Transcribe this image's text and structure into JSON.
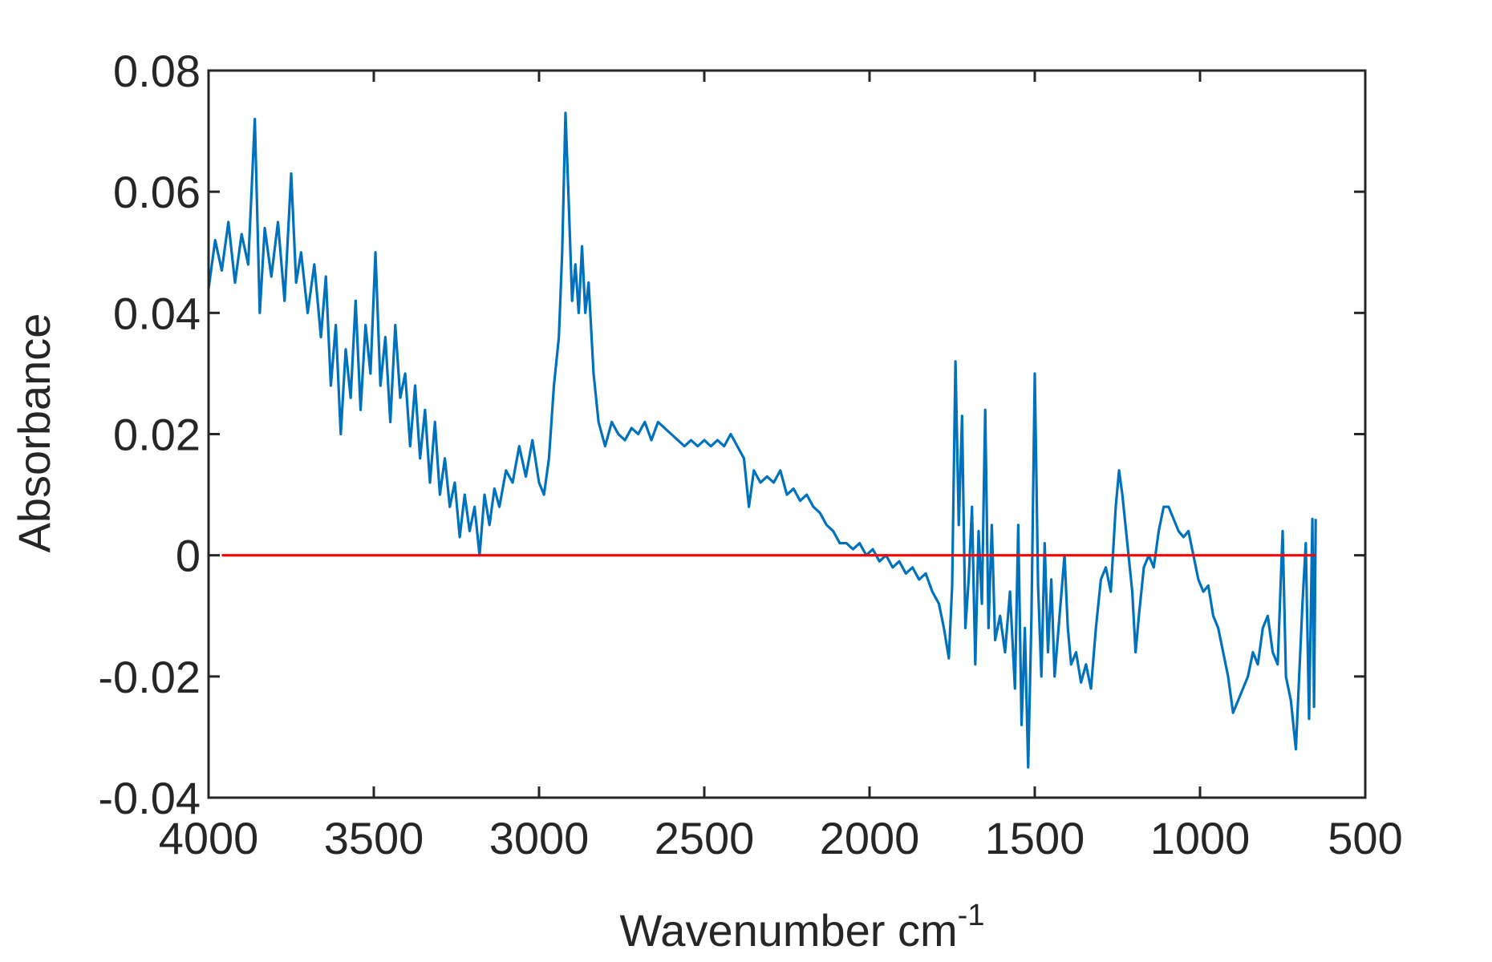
{
  "chart_data": {
    "type": "line",
    "xlabel": "Wavenumber cm",
    "xlabel_sup": "-1",
    "ylabel": "Absorbance",
    "xlim": [
      4000,
      500
    ],
    "xticks": [
      4000,
      3500,
      3000,
      2500,
      2000,
      1500,
      1000,
      500
    ],
    "ylim": [
      -0.04,
      0.08
    ],
    "yticks": [
      -0.04,
      -0.02,
      0,
      0.02,
      0.04,
      0.06,
      0.08
    ],
    "box": true,
    "series": [
      {
        "color": "#0072bd",
        "x": [
          4000,
          3980,
          3960,
          3940,
          3920,
          3900,
          3880,
          3860,
          3845,
          3830,
          3810,
          3790,
          3770,
          3750,
          3735,
          3720,
          3700,
          3680,
          3660,
          3645,
          3630,
          3615,
          3600,
          3585,
          3570,
          3555,
          3540,
          3525,
          3510,
          3495,
          3480,
          3465,
          3450,
          3435,
          3420,
          3405,
          3390,
          3375,
          3360,
          3345,
          3330,
          3315,
          3300,
          3285,
          3270,
          3255,
          3240,
          3225,
          3210,
          3195,
          3180,
          3165,
          3150,
          3135,
          3120,
          3100,
          3080,
          3060,
          3040,
          3020,
          3000,
          2985,
          2970,
          2955,
          2940,
          2930,
          2920,
          2910,
          2900,
          2890,
          2880,
          2870,
          2860,
          2850,
          2835,
          2820,
          2800,
          2780,
          2760,
          2740,
          2720,
          2700,
          2680,
          2660,
          2640,
          2620,
          2600,
          2580,
          2560,
          2540,
          2520,
          2500,
          2480,
          2460,
          2440,
          2420,
          2400,
          2380,
          2365,
          2350,
          2330,
          2310,
          2290,
          2270,
          2250,
          2230,
          2210,
          2190,
          2170,
          2150,
          2130,
          2110,
          2090,
          2070,
          2050,
          2030,
          2010,
          1990,
          1970,
          1950,
          1930,
          1910,
          1890,
          1870,
          1850,
          1830,
          1810,
          1790,
          1775,
          1760,
          1750,
          1740,
          1730,
          1720,
          1710,
          1700,
          1690,
          1680,
          1670,
          1660,
          1650,
          1640,
          1630,
          1620,
          1605,
          1590,
          1575,
          1560,
          1550,
          1540,
          1530,
          1520,
          1510,
          1500,
          1490,
          1480,
          1470,
          1460,
          1450,
          1440,
          1425,
          1410,
          1400,
          1390,
          1375,
          1360,
          1345,
          1330,
          1315,
          1300,
          1285,
          1270,
          1255,
          1245,
          1235,
          1220,
          1205,
          1195,
          1185,
          1170,
          1155,
          1140,
          1125,
          1110,
          1095,
          1080,
          1065,
          1050,
          1035,
          1020,
          1005,
          990,
          975,
          960,
          945,
          930,
          915,
          900,
          885,
          870,
          855,
          840,
          825,
          810,
          795,
          780,
          765,
          750,
          740,
          725,
          710,
          700,
          690,
          680,
          670,
          660,
          655,
          650
        ],
        "values": [
          0.044,
          0.052,
          0.047,
          0.055,
          0.045,
          0.053,
          0.048,
          0.072,
          0.04,
          0.054,
          0.046,
          0.055,
          0.042,
          0.063,
          0.045,
          0.05,
          0.04,
          0.048,
          0.036,
          0.046,
          0.028,
          0.038,
          0.02,
          0.034,
          0.026,
          0.042,
          0.024,
          0.038,
          0.03,
          0.05,
          0.028,
          0.036,
          0.022,
          0.038,
          0.026,
          0.03,
          0.018,
          0.028,
          0.016,
          0.024,
          0.012,
          0.022,
          0.01,
          0.016,
          0.008,
          0.012,
          0.003,
          0.01,
          0.004,
          0.008,
          0.0,
          0.01,
          0.005,
          0.011,
          0.008,
          0.014,
          0.012,
          0.018,
          0.013,
          0.019,
          0.012,
          0.01,
          0.016,
          0.028,
          0.036,
          0.05,
          0.073,
          0.058,
          0.042,
          0.048,
          0.04,
          0.051,
          0.04,
          0.045,
          0.03,
          0.022,
          0.018,
          0.022,
          0.02,
          0.019,
          0.021,
          0.02,
          0.022,
          0.019,
          0.022,
          0.021,
          0.02,
          0.019,
          0.018,
          0.019,
          0.018,
          0.019,
          0.018,
          0.019,
          0.018,
          0.02,
          0.018,
          0.016,
          0.008,
          0.014,
          0.012,
          0.013,
          0.012,
          0.014,
          0.01,
          0.011,
          0.009,
          0.01,
          0.008,
          0.007,
          0.005,
          0.004,
          0.002,
          0.002,
          0.001,
          0.002,
          0.0,
          0.001,
          -0.001,
          0.0,
          -0.002,
          -0.001,
          -0.003,
          -0.002,
          -0.004,
          -0.003,
          -0.006,
          -0.008,
          -0.012,
          -0.017,
          -0.005,
          0.032,
          0.005,
          0.023,
          -0.012,
          -0.004,
          0.008,
          -0.018,
          0.004,
          -0.008,
          0.024,
          -0.012,
          0.005,
          -0.014,
          -0.01,
          -0.016,
          -0.006,
          -0.022,
          0.005,
          -0.028,
          -0.012,
          -0.035,
          -0.01,
          0.03,
          -0.005,
          -0.02,
          0.002,
          -0.016,
          -0.004,
          -0.02,
          -0.01,
          0.0,
          -0.012,
          -0.018,
          -0.016,
          -0.021,
          -0.018,
          -0.022,
          -0.012,
          -0.004,
          -0.002,
          -0.006,
          0.008,
          0.014,
          0.01,
          0.002,
          -0.006,
          -0.016,
          -0.01,
          -0.002,
          0.0,
          -0.002,
          0.004,
          0.008,
          0.008,
          0.006,
          0.004,
          0.003,
          0.004,
          0.0,
          -0.004,
          -0.006,
          -0.005,
          -0.01,
          -0.012,
          -0.016,
          -0.02,
          -0.026,
          -0.024,
          -0.022,
          -0.02,
          -0.016,
          -0.018,
          -0.012,
          -0.01,
          -0.016,
          -0.018,
          0.004,
          -0.02,
          -0.024,
          -0.032,
          -0.02,
          -0.008,
          0.002,
          -0.027,
          0.006,
          -0.025,
          0.006
        ]
      },
      {
        "color": "#ff0000",
        "x": [
          3960,
          650
        ],
        "values": [
          0,
          0
        ]
      }
    ]
  }
}
